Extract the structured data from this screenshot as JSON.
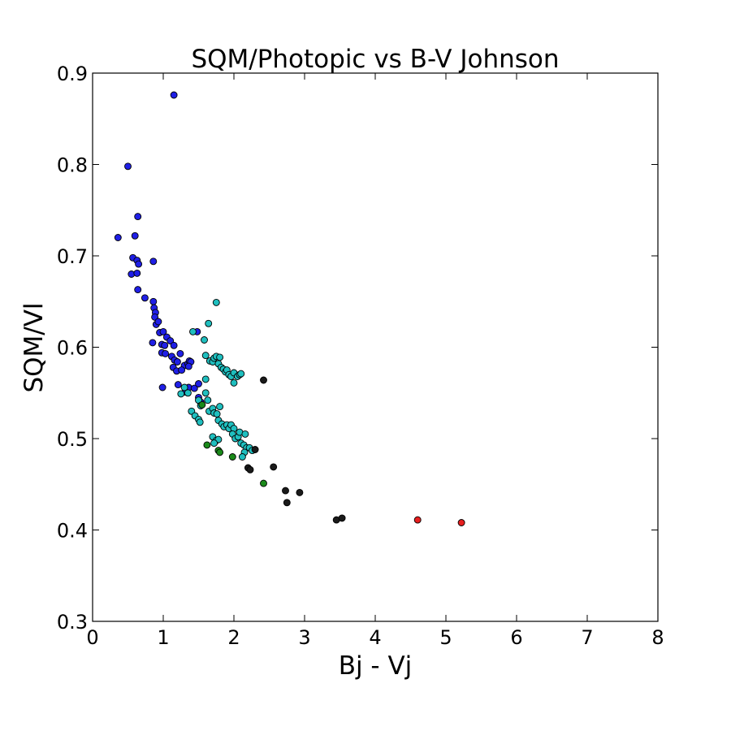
{
  "chart_data": {
    "type": "scatter",
    "title": "SQM/Photopic vs B-V Johnson",
    "xlabel": "Bj - Vj",
    "ylabel": "SQM/Vl",
    "xlim": [
      0,
      8
    ],
    "ylim": [
      0.3,
      0.9
    ],
    "xticks": [
      "0",
      "1",
      "2",
      "3",
      "4",
      "5",
      "6",
      "7",
      "8"
    ],
    "yticks": [
      "0.3",
      "0.4",
      "0.5",
      "0.6",
      "0.7",
      "0.8",
      "0.9"
    ],
    "grid": false,
    "legend": "none",
    "series": [
      {
        "color": "#1f1fe6",
        "points": [
          [
            0.36,
            0.72
          ],
          [
            0.5,
            0.798
          ],
          [
            0.57,
            0.698
          ],
          [
            0.6,
            0.722
          ],
          [
            0.64,
            0.743
          ],
          [
            0.55,
            0.68
          ],
          [
            0.63,
            0.695
          ],
          [
            0.65,
            0.691
          ],
          [
            0.63,
            0.681
          ],
          [
            0.64,
            0.663
          ],
          [
            0.86,
            0.694
          ],
          [
            0.74,
            0.654
          ],
          [
            0.86,
            0.65
          ],
          [
            0.87,
            0.643
          ],
          [
            0.89,
            0.638
          ],
          [
            0.88,
            0.633
          ],
          [
            0.9,
            0.625
          ],
          [
            0.93,
            0.628
          ],
          [
            0.95,
            0.616
          ],
          [
            1.0,
            0.617
          ],
          [
            0.85,
            0.605
          ],
          [
            0.98,
            0.603
          ],
          [
            1.02,
            0.602
          ],
          [
            1.05,
            0.611
          ],
          [
            1.1,
            0.607
          ],
          [
            1.15,
            0.602
          ],
          [
            0.98,
            0.594
          ],
          [
            1.03,
            0.593
          ],
          [
            1.12,
            0.59
          ],
          [
            1.16,
            0.586
          ],
          [
            1.2,
            0.584
          ],
          [
            1.24,
            0.593
          ],
          [
            1.3,
            0.58
          ],
          [
            1.35,
            0.582
          ],
          [
            1.37,
            0.585
          ],
          [
            1.39,
            0.584
          ],
          [
            1.14,
            0.578
          ],
          [
            1.19,
            0.574
          ],
          [
            1.26,
            0.575
          ],
          [
            1.36,
            0.579
          ],
          [
            1.21,
            0.559
          ],
          [
            1.36,
            0.556
          ],
          [
            1.44,
            0.555
          ],
          [
            1.5,
            0.56
          ],
          [
            1.48,
            0.617
          ],
          [
            0.99,
            0.556
          ],
          [
            1.15,
            0.876
          ],
          [
            1.5,
            0.545
          ],
          [
            1.53,
            0.54
          ],
          [
            1.31,
            0.551
          ]
        ]
      },
      {
        "color": "#1fbfbf",
        "points": [
          [
            1.75,
            0.649
          ],
          [
            1.64,
            0.626
          ],
          [
            1.42,
            0.617
          ],
          [
            1.58,
            0.608
          ],
          [
            1.6,
            0.591
          ],
          [
            1.66,
            0.585
          ],
          [
            1.7,
            0.584
          ],
          [
            1.72,
            0.588
          ],
          [
            1.75,
            0.59
          ],
          [
            1.78,
            0.582
          ],
          [
            1.8,
            0.589
          ],
          [
            1.82,
            0.578
          ],
          [
            1.85,
            0.576
          ],
          [
            1.88,
            0.573
          ],
          [
            1.9,
            0.575
          ],
          [
            1.93,
            0.57
          ],
          [
            1.96,
            0.568
          ],
          [
            2.0,
            0.572
          ],
          [
            2.05,
            0.568
          ],
          [
            2.08,
            0.57
          ],
          [
            2.1,
            0.571
          ],
          [
            2.0,
            0.561
          ],
          [
            1.6,
            0.565
          ],
          [
            1.63,
            0.542
          ],
          [
            1.6,
            0.55
          ],
          [
            1.5,
            0.542
          ],
          [
            1.53,
            0.536
          ],
          [
            1.35,
            0.55
          ],
          [
            1.3,
            0.556
          ],
          [
            1.25,
            0.549
          ],
          [
            1.4,
            0.53
          ],
          [
            1.45,
            0.525
          ],
          [
            1.5,
            0.521
          ],
          [
            1.52,
            0.518
          ],
          [
            1.65,
            0.53
          ],
          [
            1.7,
            0.533
          ],
          [
            1.72,
            0.528
          ],
          [
            1.76,
            0.527
          ],
          [
            1.8,
            0.535
          ],
          [
            1.78,
            0.52
          ],
          [
            1.83,
            0.516
          ],
          [
            1.86,
            0.513
          ],
          [
            1.9,
            0.515
          ],
          [
            1.93,
            0.511
          ],
          [
            1.96,
            0.515
          ],
          [
            2.0,
            0.511
          ],
          [
            1.98,
            0.505
          ],
          [
            2.02,
            0.5
          ],
          [
            2.06,
            0.502
          ],
          [
            2.08,
            0.507
          ],
          [
            2.1,
            0.495
          ],
          [
            2.14,
            0.493
          ],
          [
            2.16,
            0.505
          ],
          [
            2.18,
            0.49
          ],
          [
            2.22,
            0.49
          ],
          [
            2.26,
            0.487
          ],
          [
            2.15,
            0.485
          ],
          [
            2.12,
            0.48
          ],
          [
            1.7,
            0.502
          ],
          [
            1.75,
            0.498
          ],
          [
            1.78,
            0.499
          ],
          [
            1.72,
            0.495
          ]
        ]
      },
      {
        "color": "#1a8a1a",
        "points": [
          [
            1.62,
            0.493
          ],
          [
            1.78,
            0.487
          ],
          [
            1.8,
            0.485
          ],
          [
            1.98,
            0.48
          ],
          [
            2.42,
            0.451
          ],
          [
            1.55,
            0.537
          ]
        ]
      },
      {
        "color": "#1a1a1a",
        "points": [
          [
            2.42,
            0.564
          ],
          [
            2.3,
            0.488
          ],
          [
            2.2,
            0.468
          ],
          [
            2.23,
            0.466
          ],
          [
            2.56,
            0.469
          ],
          [
            2.73,
            0.443
          ],
          [
            2.75,
            0.43
          ],
          [
            2.93,
            0.441
          ],
          [
            3.45,
            0.411
          ],
          [
            3.53,
            0.413
          ]
        ]
      },
      {
        "color": "#e61f1f",
        "points": [
          [
            4.6,
            0.411
          ],
          [
            5.22,
            0.408
          ]
        ]
      }
    ]
  }
}
